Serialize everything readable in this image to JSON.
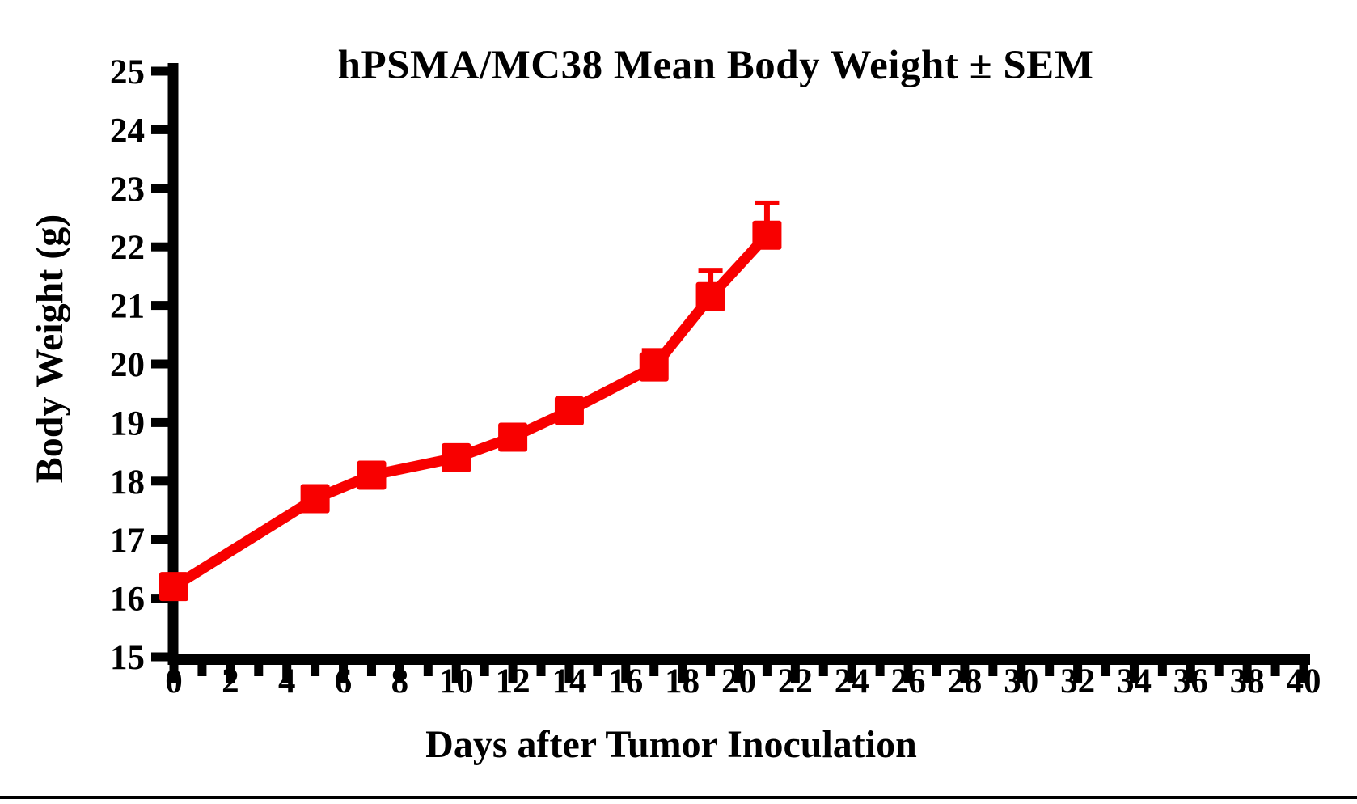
{
  "figure": {
    "background_color": "#ffffff",
    "axis_color": "#000000"
  },
  "chart_data": {
    "type": "line",
    "title": "hPSMA/MC38 Mean Body Weight ± SEM",
    "xlabel": "Days after Tumor Inoculation",
    "ylabel": "Body Weight (g)",
    "xlim": [
      0,
      40
    ],
    "ylim": [
      15,
      25
    ],
    "grid": false,
    "legend": "none",
    "xticks_major": [
      0,
      2,
      4,
      6,
      8,
      10,
      12,
      14,
      16,
      18,
      20,
      22,
      24,
      26,
      28,
      30,
      32,
      34,
      36,
      38,
      40
    ],
    "xticks_minor": [
      1,
      3,
      5,
      7,
      9,
      11,
      13,
      15,
      17,
      19,
      21,
      23,
      25,
      27,
      29,
      31,
      33,
      35,
      37,
      39
    ],
    "yticks": [
      15,
      16,
      17,
      18,
      19,
      20,
      21,
      22,
      23,
      24,
      25
    ],
    "series": [
      {
        "name": "hPSMA/MC38",
        "color": "#f80000",
        "marker": "square",
        "error_bars": "upper SEM",
        "x": [
          0,
          5,
          7,
          10,
          12,
          14,
          17,
          19,
          21
        ],
        "y": [
          16.2,
          17.7,
          18.1,
          18.4,
          18.75,
          19.2,
          19.95,
          21.15,
          22.2
        ],
        "sem_upper": [
          0,
          0,
          0,
          0,
          0,
          0,
          0.28,
          0.45,
          0.55
        ]
      }
    ]
  }
}
